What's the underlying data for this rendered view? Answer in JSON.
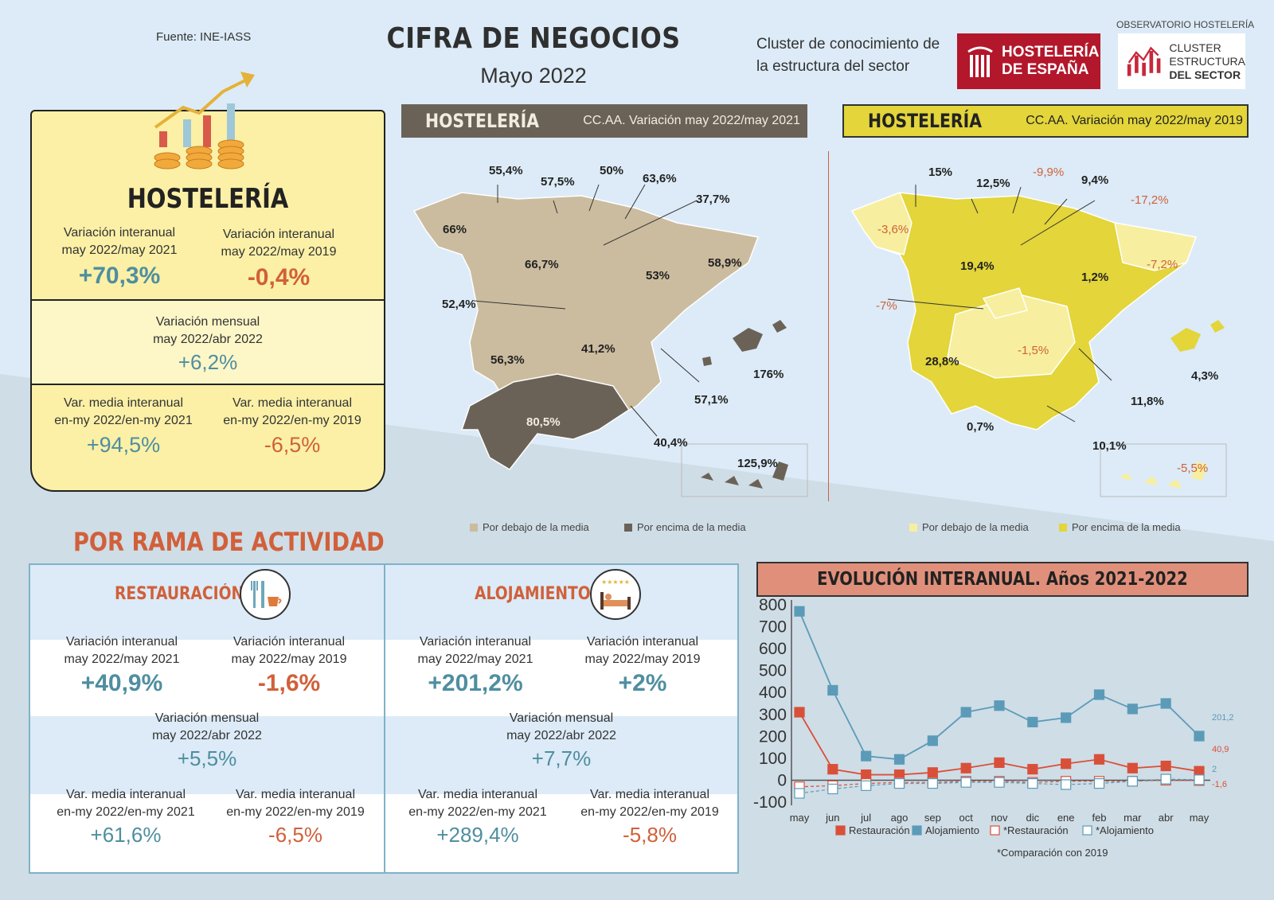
{
  "header": {
    "source": "Fuente: INE-IASS",
    "title": "CIFRA DE NEGOCIOS",
    "subtitle": "Mayo 2022",
    "cluster_line1": "Cluster de conocimiento de",
    "cluster_line2": "la estructura del sector",
    "logo1_line1": "HOSTELERÍA",
    "logo1_line2": "DE ESPAÑA",
    "logo2_label": "OBSERVATORIO HOSTELERÍA",
    "logo2_line1": "CLUSTER",
    "logo2_line2": "ESTRUCTURA",
    "logo2_line3": "DEL SECTOR"
  },
  "colors": {
    "positive": "#4f8ea0",
    "negative": "#d1603a",
    "map_below_2021": "#cbbc9f",
    "map_above_2021": "#6b6257",
    "map_below_2019": "#f7ef9f",
    "map_above_2019": "#e3d53a",
    "restauracion": "#d9503a",
    "alojamiento": "#5b9bb8"
  },
  "hosteleria": {
    "title": "HOSTELERÍA",
    "var_2021_label1": "Variación interanual",
    "var_2021_label2": "may 2022/may 2021",
    "var_2021_value": "+70,3%",
    "var_2019_label1": "Variación interanual",
    "var_2019_label2": "may 2022/may 2019",
    "var_2019_value": "-0,4%",
    "mensual_label1": "Variación mensual",
    "mensual_label2": "may 2022/abr 2022",
    "mensual_value": "+6,2%",
    "media_2021_label1": "Var. media interanual",
    "media_2021_label2": "en-my 2022/en-my 2021",
    "media_2021_value": "+94,5%",
    "media_2019_label1": "Var. media interanual",
    "media_2019_label2": "en-my 2022/en-my 2019",
    "media_2019_value": "-6,5%"
  },
  "map2021": {
    "title": "HOSTELERÍA",
    "subtitle": "CC.AA. Variación may 2022/may 2021",
    "labels": [
      "55,4%",
      "57,5%",
      "50%",
      "63,6%",
      "37,7%",
      "66%",
      "66,7%",
      "53%",
      "58,9%",
      "52,4%",
      "41,2%",
      "56,3%",
      "176%",
      "57,1%",
      "80,5%",
      "40,4%",
      "125,9%"
    ],
    "legend_below": "Por debajo de la media",
    "legend_above": "Por encima de la media"
  },
  "map2019": {
    "title": "HOSTELERÍA",
    "subtitle": "CC.AA. Variación may 2022/may 2019",
    "labels": [
      "15%",
      "12,5%",
      "-9,9%",
      "9,4%",
      "-17,2%",
      "-3,6%",
      "19,4%",
      "1,2%",
      "-7,2%",
      "-7%",
      "-1,5%",
      "28,8%",
      "4,3%",
      "11,8%",
      "0,7%",
      "10,1%",
      "-5,5%"
    ],
    "legend_below": "Por debajo de la media",
    "legend_above": "Por encima de la media"
  },
  "rama": {
    "title": "POR RAMA DE ACTIVIDAD",
    "restauracion": {
      "title": "RESTAURACIÓN",
      "var_2021_label1": "Variación interanual",
      "var_2021_label2": "may 2022/may 2021",
      "var_2021_value": "+40,9%",
      "var_2019_label1": "Variación interanual",
      "var_2019_label2": "may 2022/may 2019",
      "var_2019_value": "-1,6%",
      "mensual_label1": "Variación mensual",
      "mensual_label2": "may 2022/abr 2022",
      "mensual_value": "+5,5%",
      "media_2021_label1": "Var. media interanual",
      "media_2021_label2": "en-my 2022/en-my 2021",
      "media_2021_value": "+61,6%",
      "media_2019_label1": "Var. media interanual",
      "media_2019_label2": "en-my 2022/en-my 2019",
      "media_2019_value": "-6,5%"
    },
    "alojamiento": {
      "title": "ALOJAMIENTO",
      "var_2021_label1": "Variación interanual",
      "var_2021_label2": "may 2022/may 2021",
      "var_2021_value": "+201,2%",
      "var_2019_label1": "Variación interanual",
      "var_2019_label2": "may 2022/may 2019",
      "var_2019_value": "+2%",
      "mensual_label1": "Variación mensual",
      "mensual_label2": "may 2022/abr 2022",
      "mensual_value": "+7,7%",
      "media_2021_label1": "Var. media interanual",
      "media_2021_label2": "en-my 2022/en-my 2021",
      "media_2021_value": "+289,4%",
      "media_2019_label1": "Var. media interanual",
      "media_2019_label2": "en-my 2022/en-my 2019",
      "media_2019_value": "-5,8%"
    }
  },
  "chart_data": {
    "type": "line",
    "title": "EVOLUCIÓN INTERANUAL. Años 2021-2022",
    "categories": [
      "may",
      "jun",
      "jul",
      "ago",
      "sep",
      "oct",
      "nov",
      "dic",
      "ene",
      "feb",
      "mar",
      "abr",
      "may"
    ],
    "ylim": [
      -100,
      800
    ],
    "yticks": [
      "800",
      "700",
      "600",
      "500",
      "400",
      "300",
      "200",
      "100",
      "0",
      "-100"
    ],
    "series": [
      {
        "name": "Restauración",
        "style": "solid-filled",
        "values": [
          310,
          50,
          25,
          25,
          35,
          55,
          80,
          50,
          75,
          95,
          55,
          65,
          40.9
        ]
      },
      {
        "name": "Alojamiento",
        "style": "solid-filled",
        "values": [
          770,
          410,
          110,
          95,
          180,
          310,
          340,
          265,
          285,
          390,
          325,
          350,
          201.2
        ]
      },
      {
        "name": "*Restauración",
        "style": "dashed-hollow",
        "values": [
          -30,
          -25,
          -15,
          -10,
          -10,
          -5,
          -5,
          -10,
          -5,
          -5,
          -5,
          0,
          -1.6
        ]
      },
      {
        "name": "*Alojamiento",
        "style": "dashed-hollow",
        "values": [
          -60,
          -40,
          -25,
          -15,
          -15,
          -10,
          -10,
          -15,
          -20,
          -15,
          -5,
          5,
          2
        ]
      }
    ],
    "end_labels": [
      "201,2",
      "40,9",
      "2",
      "-1,6"
    ],
    "footnote": "*Comparación con 2019"
  }
}
